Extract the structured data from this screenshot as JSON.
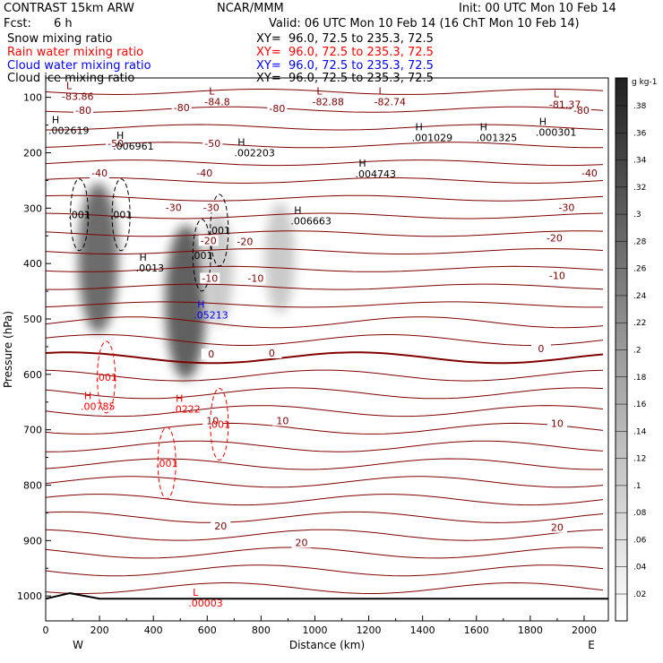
{
  "header": {
    "model": "CONTRAST 15km ARW",
    "org": "NCAR/MMM",
    "init": "Init: 00 UTC Mon 10 Feb 14",
    "fcst_label": "Fcst:",
    "fcst_value": "6 h",
    "valid": "Valid: 06 UTC Mon 10 Feb 14 (16 ChT Mon 10 Feb 14)",
    "xy": "XY=  96.0, 72.5 to 235.3, 72.5",
    "fields": [
      {
        "name": "Snow mixing ratio",
        "color": "#000000"
      },
      {
        "name": "Rain water mixing ratio",
        "color": "#ff0000"
      },
      {
        "name": "Cloud water mixing ratio",
        "color": "#0000ff"
      },
      {
        "name": "Cloud ice mixing ratio",
        "color": "#000000"
      }
    ]
  },
  "colorbar": {
    "unit": "g kg-1",
    "labels": [
      ".38",
      ".36",
      ".34",
      ".32",
      ".3",
      ".28",
      ".26",
      ".24",
      ".22",
      ".2",
      ".18",
      ".16",
      ".14",
      ".12",
      ".1",
      ".08",
      ".06",
      ".04",
      ".02"
    ]
  },
  "chart_data": {
    "type": "heatmap",
    "title": "",
    "xlabel": "Distance (km)",
    "ylabel": "Pressure (hPa)",
    "xlim": [
      0,
      2090
    ],
    "ylim": [
      1045,
      65
    ],
    "xticks": [
      "0",
      "200",
      "400",
      "600",
      "800",
      "1000",
      "1200",
      "1400",
      "1600",
      "1800",
      "2000"
    ],
    "yticks": [
      "100",
      "200",
      "300",
      "400",
      "500",
      "600",
      "700",
      "800",
      "900",
      "1000"
    ],
    "end_labels": {
      "left": "W",
      "right": "E"
    },
    "snow_maxima": [
      {
        "x": 195,
        "p": 390,
        "v": 0.28
      },
      {
        "x": 520,
        "p": 470,
        "v": 0.3
      },
      {
        "x": 640,
        "p": 410,
        "v": 0.1
      },
      {
        "x": 870,
        "p": 390,
        "v": 0.1
      }
    ],
    "temperature_labels": [
      {
        "x": 260,
        "p": 185,
        "text": "-50"
      },
      {
        "x": 620,
        "p": 185,
        "text": "-50"
      },
      {
        "x": 140,
        "p": 125,
        "text": "-80"
      },
      {
        "x": 505,
        "p": 120,
        "text": "-80"
      },
      {
        "x": 860,
        "p": 122,
        "text": "-80"
      },
      {
        "x": 1990,
        "p": 125,
        "text": "-80"
      },
      {
        "x": 200,
        "p": 238,
        "text": "-40"
      },
      {
        "x": 590,
        "p": 238,
        "text": "-40"
      },
      {
        "x": 2020,
        "p": 238,
        "text": "-40"
      },
      {
        "x": 475,
        "p": 300,
        "text": "-30"
      },
      {
        "x": 615,
        "p": 300,
        "text": "-30"
      },
      {
        "x": 1935,
        "p": 300,
        "text": "-30"
      },
      {
        "x": 605,
        "p": 360,
        "text": "-20"
      },
      {
        "x": 740,
        "p": 362,
        "text": "-20"
      },
      {
        "x": 1890,
        "p": 355,
        "text": "-20"
      },
      {
        "x": 610,
        "p": 428,
        "text": "-10"
      },
      {
        "x": 780,
        "p": 428,
        "text": "-10"
      },
      {
        "x": 1900,
        "p": 423,
        "text": "-10"
      },
      {
        "x": 615,
        "p": 565,
        "text": "0"
      },
      {
        "x": 840,
        "p": 563,
        "text": "0"
      },
      {
        "x": 1840,
        "p": 555,
        "text": "0"
      },
      {
        "x": 620,
        "p": 685,
        "text": "10"
      },
      {
        "x": 880,
        "p": 685,
        "text": "10"
      },
      {
        "x": 1900,
        "p": 690,
        "text": "10"
      },
      {
        "x": 650,
        "p": 875,
        "text": "20"
      },
      {
        "x": 950,
        "p": 905,
        "text": "20"
      },
      {
        "x": 1900,
        "p": 878,
        "text": "20"
      }
    ],
    "extrema": [
      {
        "x": 60,
        "p": 85,
        "kind": "L",
        "value": "-83.86",
        "color": "#800000"
      },
      {
        "x": 590,
        "p": 95,
        "kind": "L",
        "value": "-84.8",
        "color": "#800000"
      },
      {
        "x": 990,
        "p": 95,
        "kind": "L",
        "value": "-82.88",
        "color": "#800000"
      },
      {
        "x": 1220,
        "p": 95,
        "kind": "L",
        "value": "-82.74",
        "color": "#800000"
      },
      {
        "x": 1870,
        "p": 100,
        "kind": "L",
        "value": "-81.37",
        "color": "#800000"
      },
      {
        "x": 10,
        "p": 147,
        "kind": "H",
        "value": ".002619",
        "color": "#000000"
      },
      {
        "x": 250,
        "p": 175,
        "kind": "H",
        "value": ".006961",
        "color": "#000000"
      },
      {
        "x": 700,
        "p": 187,
        "kind": "H",
        "value": ".002203",
        "color": "#000000"
      },
      {
        "x": 1360,
        "p": 160,
        "kind": "H",
        "value": ".001029",
        "color": "#000000"
      },
      {
        "x": 1600,
        "p": 160,
        "kind": "H",
        "value": ".001325",
        "color": "#000000"
      },
      {
        "x": 1820,
        "p": 150,
        "kind": "H",
        "value": ".000301",
        "color": "#000000"
      },
      {
        "x": 1150,
        "p": 225,
        "kind": "H",
        "value": ".004743",
        "color": "#000000"
      },
      {
        "x": 910,
        "p": 310,
        "kind": "H",
        "value": ".006663",
        "color": "#000000"
      },
      {
        "x": 335,
        "p": 395,
        "kind": "H",
        "value": ".0013",
        "color": "#000000"
      },
      {
        "x": 550,
        "p": 480,
        "kind": "H",
        "value": ".05213",
        "color": "#0000ff"
      },
      {
        "x": 130,
        "p": 645,
        "kind": "H",
        "value": ".00785",
        "color": "#ff0000"
      },
      {
        "x": 470,
        "p": 650,
        "kind": "H",
        "value": ".0222",
        "color": "#ff0000"
      },
      {
        "x": 530,
        "p": 1000,
        "kind": "L",
        "value": ".00003",
        "color": "#ff0000"
      }
    ],
    "contour_labels": [
      {
        "x": 125,
        "p": 312,
        "text": ".001",
        "color": "#000000"
      },
      {
        "x": 280,
        "p": 312,
        "text": ".001",
        "color": "#000000"
      },
      {
        "x": 645,
        "p": 340,
        "text": ".001",
        "color": "#000000"
      },
      {
        "x": 580,
        "p": 385,
        "text": ".001",
        "color": "#000000"
      },
      {
        "x": 225,
        "p": 605,
        "text": ".001",
        "color": "#ff0000"
      },
      {
        "x": 645,
        "p": 690,
        "text": ".001",
        "color": "#ff0000"
      },
      {
        "x": 450,
        "p": 760,
        "text": ".001",
        "color": "#ff0000"
      }
    ]
  }
}
